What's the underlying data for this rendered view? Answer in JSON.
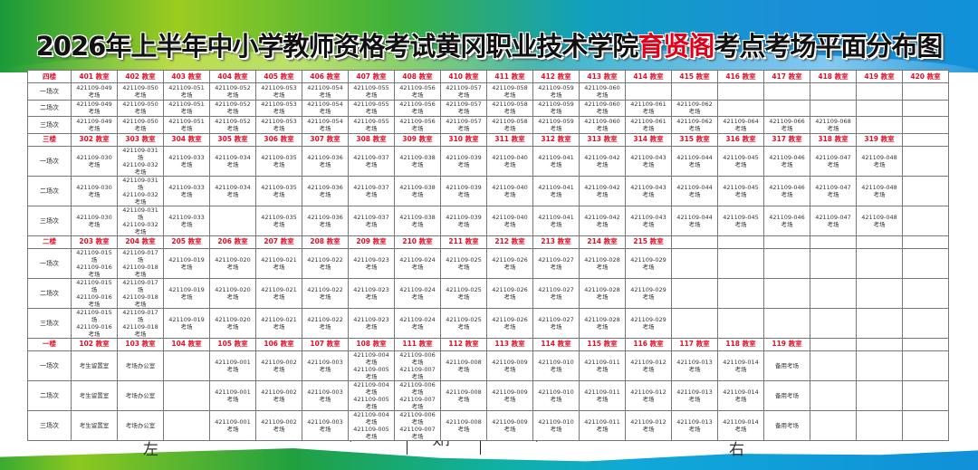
{
  "title": {
    "part1": "2026年上半年中小学教师资格考试黄冈职业技术学院",
    "highlight": "育贤阁",
    "part2": "考点考场平面分布图",
    "highlight_color": "#e0001a"
  },
  "sessions": [
    "一场次",
    "二场次",
    "三场次"
  ],
  "floors": [
    {
      "label": "四楼",
      "rooms": [
        "401 教室",
        "402 教室",
        "403 教室",
        "404 教室",
        "405 教室",
        "406 教室",
        "407 教室",
        "408 教室",
        "410 教室",
        "411 教室",
        "412 教室",
        "413 教室",
        "414 教室",
        "415 教室",
        "416 教室",
        "417 教室",
        "418 教室",
        "419 教室",
        "420 教室"
      ],
      "rows": [
        [
          "421109-049\n考场",
          "421109-050\n考场",
          "421109-051\n考场",
          "421109-052\n考场",
          "421109-053\n考场",
          "421109-054\n考场",
          "421109-055\n考场",
          "421109-056\n考场",
          "421109-057\n考场",
          "421109-058\n考场",
          "421109-059\n考场",
          "421109-060\n考场",
          "",
          "",
          "",
          "",
          "",
          "",
          ""
        ],
        [
          "421109-049\n考场",
          "421109-050\n考场",
          "421109-051\n考场",
          "421109-052\n考场",
          "421109-053\n考场",
          "421109-054\n考场",
          "421109-055\n考场",
          "421109-056\n考场",
          "421109-057\n考场",
          "421109-058\n考场",
          "421109-059\n考场",
          "421109-060\n考场",
          "421109-061\n考场",
          "421109-062\n考场",
          "",
          "",
          "",
          "",
          ""
        ],
        [
          "421109-049\n考场",
          "421109-050\n考场",
          "421109-051\n考场",
          "421109-052\n考场",
          "421109-053\n考场",
          "421109-054\n考场",
          "421109-055\n考场",
          "421109-056\n考场",
          "421109-057\n考场",
          "421109-058\n考场",
          "421109-059\n考场",
          "421109-060\n考场",
          "421109-061\n考场",
          "421109-062\n考场",
          "421109-064\n考场",
          "421109-066\n考场",
          "421109-068\n考场",
          "",
          ""
        ]
      ]
    },
    {
      "label": "三楼",
      "rooms": [
        "302 教室",
        "303 教室",
        "304 教室",
        "305 教室",
        "306 教室",
        "307 教室",
        "308 教室",
        "309 教室",
        "310 教室",
        "311 教室",
        "312 教室",
        "313 教室",
        "314 教室",
        "315 教室",
        "316 教室",
        "317 教室",
        "318 教室",
        "319 教室",
        ""
      ],
      "rows": [
        [
          "421109-030\n考场",
          "421109-031\n场\n421109-032\n考场",
          "421109-033\n考场",
          "421109-034\n考场",
          "421109-035\n考场",
          "421109-036\n考场",
          "421109-037\n考场",
          "421109-038\n考场",
          "421109-039\n考场",
          "421109-040\n考场",
          "421109-041\n考场",
          "421109-042\n考场",
          "421109-043\n考场",
          "421109-044\n考场",
          "421109-045\n考场",
          "421109-046\n考场",
          "421109-047\n考场",
          "421109-048\n考场",
          ""
        ],
        [
          "421109-030\n考场",
          "421109-031\n场\n421109-032\n考场",
          "421109-033\n考场",
          "421109-034\n考场",
          "421109-035\n考场",
          "421109-036\n考场",
          "421109-037\n考场",
          "421109-038\n考场",
          "421109-039\n考场",
          "421109-040\n考场",
          "421109-041\n考场",
          "421109-042\n考场",
          "421109-043\n考场",
          "421109-044\n考场",
          "421109-045\n考场",
          "421109-046\n考场",
          "421109-047\n考场",
          "421109-048\n考场",
          ""
        ],
        [
          "421109-030\n考场",
          "421109-031\n场\n421109-032\n考场",
          "421109-033\n考场",
          "",
          "421109-035\n考场",
          "421109-036\n考场",
          "421109-037\n考场",
          "421109-038\n考场",
          "421109-039\n考场",
          "421109-040\n考场",
          "421109-041\n考场",
          "421109-042\n考场",
          "421109-043\n考场",
          "421109-044\n考场",
          "421109-045\n考场",
          "421109-046\n考场",
          "421109-047\n考场",
          "421109-048\n考场",
          ""
        ]
      ]
    },
    {
      "label": "二楼",
      "rooms": [
        "203 教室",
        "204 教室",
        "205 教室",
        "206 教室",
        "207 教室",
        "208 教室",
        "209 教室",
        "210 教室",
        "211 教室",
        "212 教室",
        "213 教室",
        "214 教室",
        "215 教室",
        "",
        "",
        "",
        "",
        "",
        ""
      ],
      "rows": [
        [
          "421109-015\n场\n421109-016\n考场",
          "421109-017\n场\n421109-018\n考场",
          "421109-019\n考场",
          "421109-020\n考场",
          "421109-021\n考场",
          "421109-022\n考场",
          "421109-023\n考场",
          "421109-024\n考场",
          "421109-025\n考场",
          "421109-026\n考场",
          "421109-027\n考场",
          "421109-028\n考场",
          "421109-029\n考场",
          "",
          "",
          "",
          "",
          "",
          ""
        ],
        [
          "421109-015\n场\n421109-016\n考场",
          "421109-017\n场\n421109-018\n考场",
          "421109-019\n考场",
          "421109-020\n考场",
          "421109-021\n考场",
          "421109-022\n考场",
          "421109-023\n考场",
          "421109-024\n考场",
          "421109-025\n考场",
          "421109-026\n考场",
          "421109-027\n考场",
          "421109-028\n考场",
          "421109-029\n考场",
          "",
          "",
          "",
          "",
          "",
          ""
        ],
        [
          "421109-015\n场\n421109-016\n考场",
          "421109-017\n场\n421109-018\n考场",
          "421109-019\n考场",
          "421109-020\n考场",
          "421109-021\n考场",
          "421109-022\n考场",
          "421109-023\n考场",
          "421109-024\n考场",
          "421109-025\n考场",
          "421109-026\n考场",
          "421109-027\n考场",
          "421109-028\n考场",
          "421109-029\n考场",
          "",
          "",
          "",
          "",
          "",
          ""
        ]
      ]
    },
    {
      "label": "一楼",
      "rooms": [
        "102 教室",
        "103 教室",
        "104 教室",
        "105 教室",
        "106 教室",
        "107 教室",
        "108 教室",
        "111 教室",
        "112 教室",
        "113 教室",
        "114 教室",
        "115 教室",
        "116 教室",
        "117 教室",
        "118 教室",
        "119 教室",
        "",
        "",
        ""
      ],
      "rows": [
        [
          "考生留置室",
          "考场办公室",
          "",
          "421109-001\n考场",
          "421109-002\n考场",
          "421109-003\n考场",
          "421109-004\n考场\n421109-005\n考场",
          "421109-006\n考场\n421109-007\n考场",
          "421109-008\n考场",
          "421109-009\n考场",
          "421109-010\n考场",
          "421109-011\n考场",
          "421109-012\n考场",
          "421109-013\n考场",
          "421109-014\n考场",
          "备用考场",
          "",
          "",
          ""
        ],
        [
          "考生留置室",
          "考场办公室",
          "",
          "421109-001\n考场",
          "421109-002\n考场",
          "421109-003\n考场",
          "421109-004\n考场\n421109-005\n考场",
          "421109-006\n考场\n421109-007\n考场",
          "421109-008\n考场",
          "421109-009\n考场",
          "421109-010\n考场",
          "421109-011\n考场",
          "421109-012\n考场",
          "421109-013\n考场",
          "421109-014\n考场",
          "备用考场",
          "",
          "",
          ""
        ],
        [
          "考生留置室",
          "考场办公室",
          "",
          "421109-001\n考场",
          "421109-002\n考场",
          "421109-003\n考场",
          "421109-004\n考场\n421109-005\n考场",
          "421109-006\n考场\n421109-007\n考场",
          "421109-008\n考场",
          "421109-009\n考场",
          "421109-010\n考场",
          "421109-011\n考场",
          "421109-012\n考场",
          "421109-013\n考场",
          "421109-014\n考场",
          "备用考场",
          "",
          "",
          ""
        ]
      ]
    }
  ],
  "footer": {
    "left": "左",
    "gate": "大门",
    "right": "右"
  }
}
